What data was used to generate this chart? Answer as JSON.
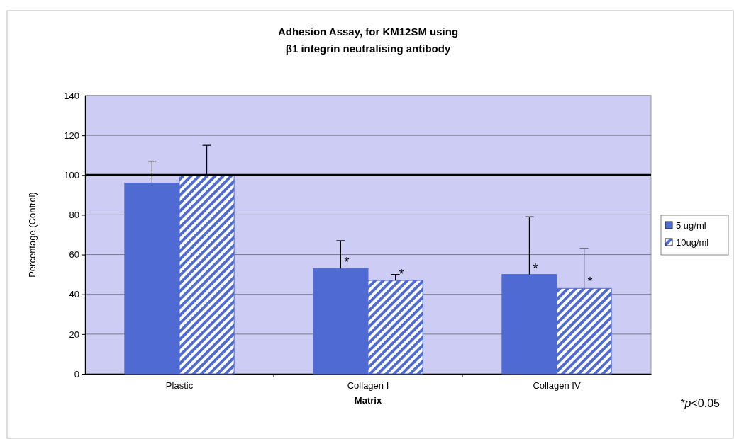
{
  "chart_data": {
    "type": "bar",
    "title": "Adhesion Assay, for KM12SM using\nβ1 integrin neutralising antibody",
    "xlabel": "Matrix",
    "ylabel": "Percentage (Control)",
    "categories": [
      "Plastic",
      "Collagen I",
      "Collagen IV"
    ],
    "series": [
      {
        "name": "5 ug/ml",
        "color": "#4f6bd3",
        "values": [
          96,
          53,
          50
        ],
        "errors": [
          [
            96,
            107
          ],
          [
            53,
            67
          ],
          [
            50,
            79
          ]
        ],
        "value_labels": [
          null,
          "*",
          "*"
        ]
      },
      {
        "name": "10ug/ml",
        "color": "#4f6bd3",
        "values": [
          100,
          47,
          43
        ],
        "errors": [
          [
            100,
            115
          ],
          [
            47,
            50
          ],
          [
            43,
            63
          ]
        ],
        "value_labels": [
          null,
          "*",
          "*"
        ]
      }
    ],
    "ylim": [
      0,
      140
    ],
    "yticks": [
      0,
      20,
      40,
      60,
      80,
      100,
      120,
      140
    ],
    "grid": "y",
    "legend": "right",
    "ref_lines": [
      {
        "axis": "y",
        "value": 100,
        "color": "#000000"
      }
    ],
    "annotations": [
      "*p<0.05"
    ]
  }
}
